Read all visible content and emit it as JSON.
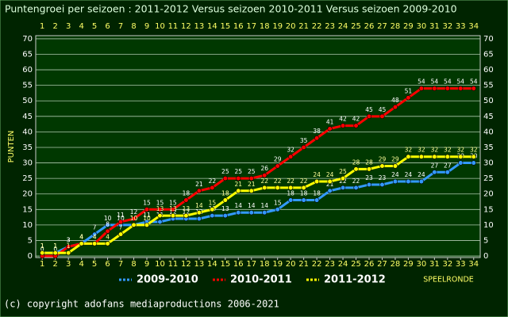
{
  "chart_data": {
    "type": "line",
    "title": "Puntengroei per seizoen : 2011-2012 Versus seizoen 2010-2011 Versus seizoen 2009-2010",
    "y_label": "PUNTEN",
    "x_label": "SPEELRONDE",
    "footer": "(c) copyright adofans mediaproductions 2006-2021",
    "x": [
      1,
      2,
      3,
      4,
      5,
      6,
      7,
      8,
      9,
      10,
      11,
      12,
      13,
      14,
      15,
      16,
      17,
      18,
      19,
      20,
      21,
      22,
      23,
      24,
      25,
      26,
      27,
      28,
      29,
      30,
      31,
      32,
      33,
      34
    ],
    "xlim": [
      0.5,
      34.5
    ],
    "ylim": [
      -0.5,
      71
    ],
    "yticks": [
      0,
      5,
      10,
      15,
      20,
      25,
      30,
      35,
      40,
      45,
      50,
      55,
      60,
      65,
      70
    ],
    "grid": true,
    "series": [
      {
        "name": "2009-2010",
        "color": "#3399ff",
        "values": [
          1,
          1,
          3,
          4,
          7,
          10,
          10,
          10,
          11,
          11,
          12,
          12,
          12,
          13,
          13,
          14,
          14,
          14,
          15,
          18,
          18,
          18,
          21,
          22,
          22,
          23,
          23,
          24,
          24,
          24,
          27,
          27,
          30,
          30
        ]
      },
      {
        "name": "2010-2011",
        "color": "#ff0000",
        "values": [
          0,
          0,
          3,
          4,
          4,
          8,
          11,
          12,
          15,
          15,
          15,
          18,
          21,
          22,
          25,
          25,
          25,
          26,
          29,
          32,
          35,
          38,
          41,
          42,
          42,
          45,
          45,
          48,
          51,
          54,
          54,
          54,
          54,
          54
        ]
      },
      {
        "name": "2011-2012",
        "color": "#ffff00",
        "values": [
          1,
          1,
          1,
          4,
          4,
          4,
          7,
          10,
          10,
          13,
          13,
          13,
          14,
          15,
          18,
          21,
          21,
          22,
          22,
          22,
          22,
          24,
          24,
          25,
          28,
          28,
          29,
          29,
          32,
          32,
          32,
          32,
          32,
          32
        ]
      }
    ]
  }
}
